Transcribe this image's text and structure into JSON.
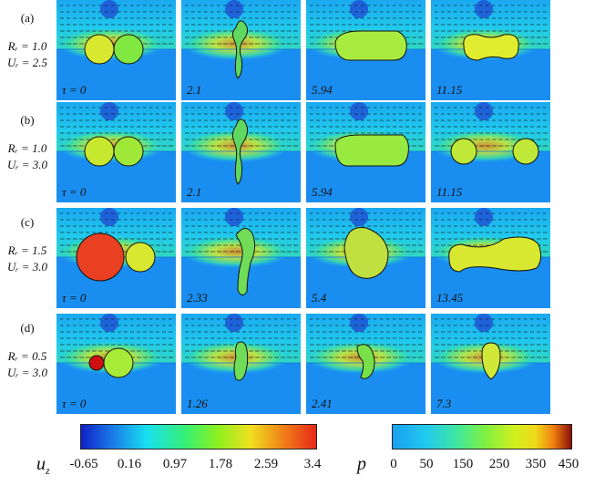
{
  "rows": [
    {
      "letter": "(a)",
      "param1": "Rᵣ = 1.0",
      "param2": "Uᵣ = 2.5",
      "times": [
        "τ = 0",
        "2.1",
        "5.94",
        "11.15"
      ]
    },
    {
      "letter": "(b)",
      "param1": "Rᵣ = 1.0",
      "param2": "Uᵣ = 3.0",
      "times": [
        "τ = 0",
        "2.1",
        "5.94",
        "11.15"
      ]
    },
    {
      "letter": "(c)",
      "param1": "Rᵣ = 1.5",
      "param2": "Uᵣ = 3.0",
      "times": [
        "τ = 0",
        "2.33",
        "5.4",
        "13.45"
      ]
    },
    {
      "letter": "(d)",
      "param1": "Rᵣ = 0.5",
      "param2": "Uᵣ = 3.0",
      "times": [
        "τ = 0",
        "1.26",
        "2.41",
        "7.3"
      ]
    }
  ],
  "colorbar_uz": {
    "label": "u",
    "sub": "z",
    "ticks": [
      "-0.65",
      "0.16",
      "0.97",
      "1.78",
      "2.59",
      "3.4"
    ]
  },
  "colorbar_p": {
    "label": "p",
    "ticks": [
      "0",
      "50",
      "150",
      "250",
      "350",
      "450"
    ]
  }
}
